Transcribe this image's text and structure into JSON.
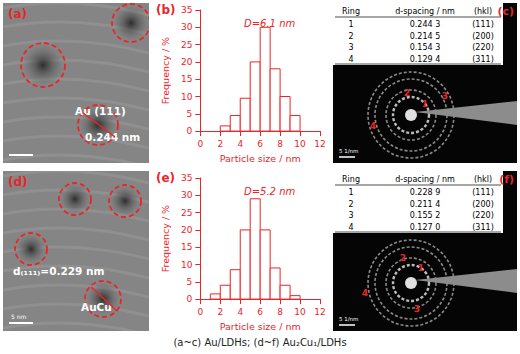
{
  "panels": {
    "a": {
      "label": "(a)",
      "annotations": [
        "Au (111)",
        "0.244 nm"
      ]
    },
    "c": {
      "label": "(c)",
      "scale_bar": "5 1/nm",
      "table": {
        "header": [
          "Ring",
          "d-spacing / nm",
          "(hkl)"
        ],
        "rows": [
          [
            "1",
            "0.244 3",
            "(111)"
          ],
          [
            "2",
            "0.214 5",
            "(200)"
          ],
          [
            "3",
            "0.154 3",
            "(220)"
          ],
          [
            "4",
            "0.129 4",
            "(311)"
          ]
        ]
      }
    },
    "d": {
      "label": "(d)",
      "scale_bar": "5 nm",
      "annotations": [
        "d₍₁₁₁₎=0.229 nm",
        "AuCu"
      ]
    },
    "f": {
      "label": "(f)",
      "scale_bar": "5 1/nm",
      "table": {
        "header": [
          "Ring",
          "d-spacing / nm",
          "(hkl)"
        ],
        "rows": [
          [
            "1",
            "0.228 9",
            "(111)"
          ],
          [
            "2",
            "0.211 4",
            "(200)"
          ],
          [
            "3",
            "0.155 2",
            "(220)"
          ],
          [
            "4",
            "0.127 0",
            "(311)"
          ]
        ]
      }
    }
  },
  "chart_data": [
    {
      "type": "histogram",
      "panel_label": "(b)",
      "annotation": "D=6.1 nm",
      "x_label": "Particle size / nm",
      "y_label": "Frequency / %",
      "bins": [
        2,
        3,
        4,
        5,
        6,
        7,
        8,
        9,
        10
      ],
      "values": [
        1.5,
        4.5,
        9.5,
        20,
        30,
        18,
        10,
        4.5
      ],
      "color": "#e8262a",
      "xlim": [
        0,
        12
      ],
      "xticks": [
        0,
        2,
        4,
        6,
        8,
        10,
        12
      ],
      "ylim": [
        0,
        35
      ],
      "yticks": [
        0,
        5,
        10,
        15,
        20,
        25,
        30,
        35
      ],
      "grid": false
    },
    {
      "type": "histogram",
      "panel_label": "(e)",
      "annotation": "D=5.2 nm",
      "x_label": "Particle size / nm",
      "y_label": "Frequency / %",
      "bins": [
        1,
        2,
        3,
        4,
        5,
        6,
        7,
        8,
        9,
        10
      ],
      "values": [
        1.5,
        4,
        8.5,
        20,
        29,
        20,
        9,
        4,
        1
      ],
      "color": "#e8262a",
      "xlim": [
        0,
        12
      ],
      "xticks": [
        0,
        2,
        4,
        6,
        8,
        10,
        12
      ],
      "ylim": [
        0,
        35
      ],
      "yticks": [
        0,
        5,
        10,
        15,
        20,
        25,
        30,
        35
      ],
      "grid": false
    }
  ],
  "caption": "(a~c) Au/LDHs; (d~f) Au₂Cu₁/LDHs"
}
